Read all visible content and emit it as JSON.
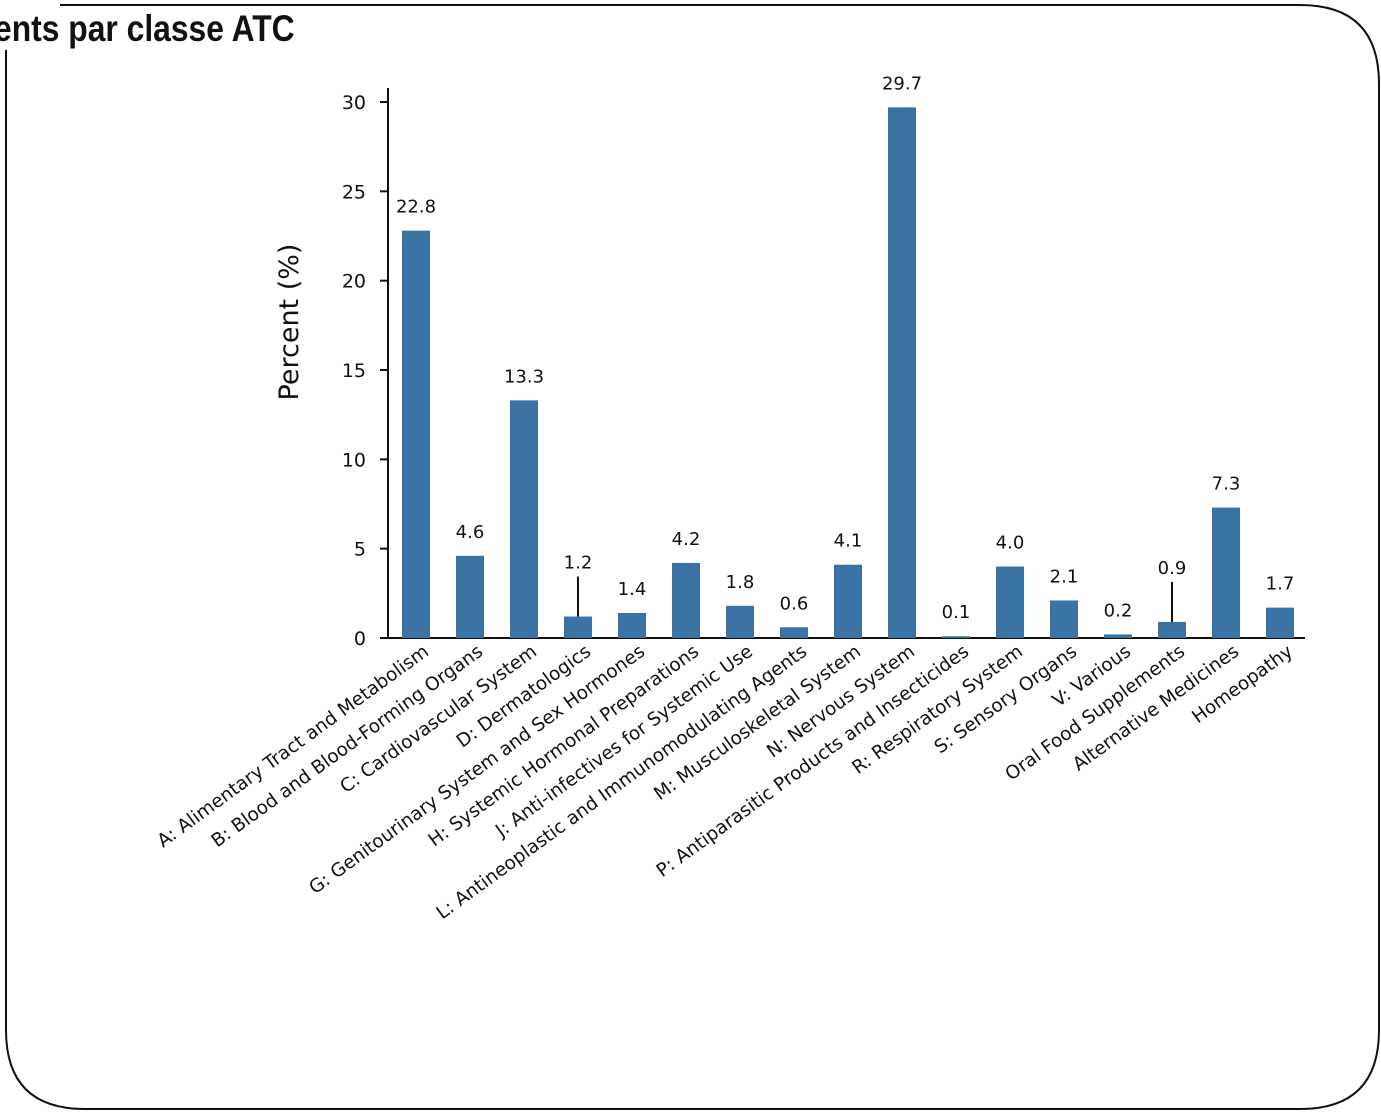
{
  "slide": {
    "title": "ents par classe ATC"
  },
  "chart_data": {
    "type": "bar",
    "ylabel": "Percent (%)",
    "xlabel": "",
    "ylim": [
      0,
      30
    ],
    "yticks": [
      0,
      5,
      10,
      15,
      20,
      25,
      30
    ],
    "grid": false,
    "bar_color": "#3a72a4",
    "categories": [
      "A: Alimentary Tract and Metabolism",
      "B: Blood and Blood-Forming Organs",
      "C: Cardiovascular System",
      "D: Dermatologics",
      "G: Genitourinary System and Sex Hormones",
      "H: Systemic Hormonal Preparations",
      "J: Anti-infectives for Systemic Use",
      "L: Antineoplastic and Immunomodulating Agents",
      "M: Musculoskeletal System",
      "N: Nervous System",
      "P: Antiparasitic Products and Insecticides",
      "R: Respiratory System",
      "S: Sensory Organs",
      "V: Various",
      "Oral Food Supplements",
      "Alternative Medicines",
      "Homeopathy"
    ],
    "values": [
      22.8,
      4.6,
      13.3,
      1.2,
      1.4,
      4.2,
      1.8,
      0.6,
      4.1,
      29.7,
      0.1,
      4.0,
      2.1,
      0.2,
      0.9,
      7.3,
      1.7
    ],
    "data_labels": [
      "22.8",
      "4.6",
      "13.3",
      "1.2",
      "1.4",
      "4.2",
      "1.8",
      "0.6",
      "4.1",
      "29.7",
      "0.1",
      "4.0",
      "2.1",
      "0.2",
      "0.9",
      "7.3",
      "1.7"
    ],
    "leader_lines": [
      "D: Dermatologics",
      "Oral Food Supplements"
    ]
  }
}
